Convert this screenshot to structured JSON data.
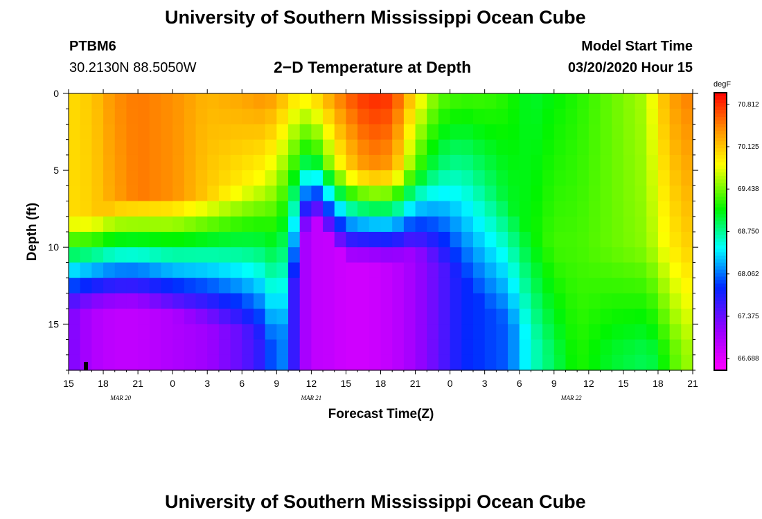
{
  "header": {
    "main_title": "University of Southern Mississippi Ocean Cube",
    "station_id": "PTBM6",
    "station_coords": "30.2130N 88.5050W",
    "plot_title": "2−D Temperature at Depth",
    "start_label": "Model Start Time",
    "start_value": "03/20/2020 Hour 15"
  },
  "footer": {
    "main_title": "University of Southern Mississippi Ocean Cube"
  },
  "chart_data": {
    "type": "heatmap",
    "title": "2−D Temperature at Depth",
    "xlabel": "Forecast Time(Z)",
    "ylabel": "Depth (ft)",
    "colorbar_unit": "degF",
    "colorbar_ticks": [
      "70.812",
      "70.125",
      "69.438",
      "68.750",
      "68.062",
      "67.375",
      "66.688"
    ],
    "value_range": [
      66.5,
      71.0
    ],
    "x_hours_range": [
      0,
      54
    ],
    "x_tick_labels": [
      "15",
      "18",
      "21",
      "0",
      "3",
      "6",
      "9",
      "12",
      "15",
      "18",
      "21",
      "0",
      "3",
      "6",
      "9",
      "12",
      "15",
      "18",
      "21"
    ],
    "day_labels": [
      {
        "text": "MAR  20",
        "hour": 4.5
      },
      {
        "text": "MAR  21",
        "hour": 21
      },
      {
        "text": "MAR  22",
        "hour": 43.5
      }
    ],
    "y_range": [
      0,
      18
    ],
    "y_ticks": [
      0,
      5,
      10,
      15
    ],
    "model_start_marker_hour": 1.5,
    "rows": 18,
    "cols": 54,
    "column_profiles": [
      {
        "hour": 0,
        "surf": 70.0,
        "mid": 70.0,
        "bot": 67.3,
        "b1": 8,
        "b2": 14
      },
      {
        "hour": 2,
        "surf": 70.1,
        "mid": 70.05,
        "bot": 67.0,
        "b1": 8,
        "b2": 14
      },
      {
        "hour": 4,
        "surf": 70.4,
        "mid": 70.3,
        "bot": 66.9,
        "b1": 7,
        "b2": 14
      },
      {
        "hour": 6,
        "surf": 70.5,
        "mid": 70.5,
        "bot": 66.9,
        "b1": 6.5,
        "b2": 14
      },
      {
        "hour": 9,
        "surf": 70.4,
        "mid": 70.4,
        "bot": 67.0,
        "b1": 6.5,
        "b2": 14.5
      },
      {
        "hour": 12,
        "surf": 70.2,
        "mid": 70.1,
        "bot": 67.1,
        "b1": 6.5,
        "b2": 15
      },
      {
        "hour": 15,
        "surf": 70.3,
        "mid": 69.9,
        "bot": 67.4,
        "b1": 6,
        "b2": 15.5
      },
      {
        "hour": 17,
        "surf": 70.4,
        "mid": 69.8,
        "bot": 67.7,
        "b1": 5.5,
        "b2": 16
      },
      {
        "hour": 18,
        "surf": 70.3,
        "mid": 69.6,
        "bot": 68.2,
        "b1": 5.5,
        "b2": 16.5
      },
      {
        "hour": 19,
        "surf": 70.1,
        "mid": 69.4,
        "bot": 68.0,
        "b1": 5,
        "b2": 15
      },
      {
        "hour": 20,
        "surf": 69.9,
        "mid": 69.1,
        "bot": 67.2,
        "b1": 4.5,
        "b2": 10
      },
      {
        "hour": 21,
        "surf": 70.0,
        "mid": 69.0,
        "bot": 66.9,
        "b1": 4,
        "b2": 8
      },
      {
        "hour": 22,
        "surf": 70.2,
        "mid": 69.3,
        "bot": 66.9,
        "b1": 4.5,
        "b2": 9
      },
      {
        "hour": 24,
        "surf": 70.6,
        "mid": 70.0,
        "bot": 66.8,
        "b1": 5,
        "b2": 11
      },
      {
        "hour": 26,
        "surf": 70.85,
        "mid": 70.4,
        "bot": 66.8,
        "b1": 5,
        "b2": 11
      },
      {
        "hour": 28,
        "surf": 70.8,
        "mid": 70.3,
        "bot": 66.9,
        "b1": 5,
        "b2": 11
      },
      {
        "hour": 30,
        "surf": 70.0,
        "mid": 69.3,
        "bot": 67.1,
        "b1": 5,
        "b2": 10.5
      },
      {
        "hour": 32,
        "surf": 69.4,
        "mid": 68.8,
        "bot": 67.4,
        "b1": 5,
        "b2": 11
      },
      {
        "hour": 34,
        "surf": 69.3,
        "mid": 68.7,
        "bot": 67.8,
        "b1": 5,
        "b2": 12
      },
      {
        "hour": 36,
        "surf": 69.3,
        "mid": 68.8,
        "bot": 67.9,
        "b1": 6,
        "b2": 14
      },
      {
        "hour": 38,
        "surf": 69.2,
        "mid": 69.0,
        "bot": 68.0,
        "b1": 7,
        "b2": 15
      },
      {
        "hour": 40,
        "surf": 69.0,
        "mid": 69.1,
        "bot": 68.6,
        "b1": 9,
        "b2": 16
      },
      {
        "hour": 42,
        "surf": 69.1,
        "mid": 69.3,
        "bot": 68.9,
        "b1": 10,
        "b2": 17
      },
      {
        "hour": 44,
        "surf": 69.2,
        "mid": 69.3,
        "bot": 69.2,
        "b1": 10,
        "b2": 17
      },
      {
        "hour": 47,
        "surf": 69.4,
        "mid": 69.4,
        "bot": 69.0,
        "b1": 10,
        "b2": 17
      },
      {
        "hour": 50,
        "surf": 69.6,
        "mid": 69.5,
        "bot": 68.9,
        "b1": 10,
        "b2": 17
      },
      {
        "hour": 51,
        "surf": 70.0,
        "mid": 69.7,
        "bot": 69.0,
        "b1": 10,
        "b2": 17
      },
      {
        "hour": 52,
        "surf": 70.3,
        "mid": 69.9,
        "bot": 69.3,
        "b1": 10,
        "b2": 17
      },
      {
        "hour": 54,
        "surf": 70.5,
        "mid": 70.1,
        "bot": 69.6,
        "b1": 10,
        "b2": 17
      }
    ]
  }
}
